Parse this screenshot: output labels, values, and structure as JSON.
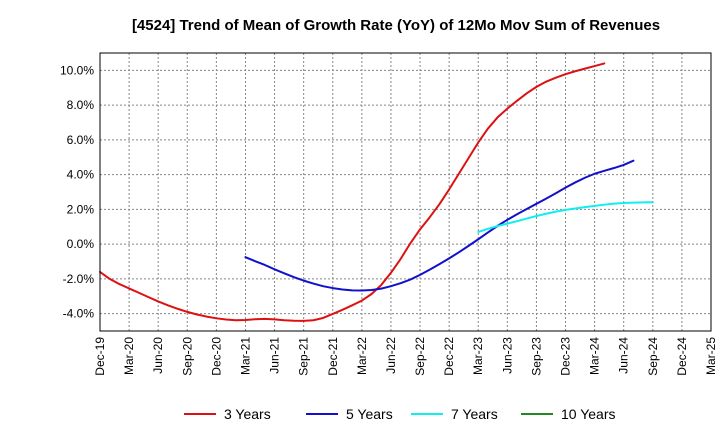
{
  "chart_data": {
    "type": "line",
    "title": "[4524]  Trend of Mean of Growth Rate (YoY) of 12Mo Mov Sum of Revenues",
    "xlabel": "",
    "ylabel": "",
    "ylim": [
      -5.0,
      11.0
    ],
    "yticks": [
      10.0,
      8.0,
      6.0,
      4.0,
      2.0,
      0.0,
      -2.0,
      -4.0
    ],
    "ytick_labels": [
      "10.0%",
      "8.0%",
      "6.0%",
      "4.0%",
      "2.0%",
      "0.0%",
      "-2.0%",
      "-4.0%"
    ],
    "x_tick_labels": [
      "Dec-19",
      "Mar-20",
      "Jun-20",
      "Sep-20",
      "Dec-20",
      "Mar-21",
      "Jun-21",
      "Sep-21",
      "Dec-21",
      "Mar-22",
      "Jun-22",
      "Sep-22",
      "Dec-22",
      "Mar-23",
      "Jun-23",
      "Sep-23",
      "Dec-23",
      "Mar-24",
      "Jun-24",
      "Sep-24",
      "Dec-24",
      "Mar-25"
    ],
    "x_start": "Dec-19",
    "x_months": 63,
    "grid": true,
    "legend_position": "bottom",
    "series": [
      {
        "name": "3 Years",
        "color": "#dd1111",
        "start_month": 0,
        "values": [
          -1.6,
          -2.0,
          -2.3,
          -2.55,
          -2.8,
          -3.05,
          -3.3,
          -3.52,
          -3.72,
          -3.9,
          -4.05,
          -4.17,
          -4.27,
          -4.34,
          -4.38,
          -4.37,
          -4.32,
          -4.3,
          -4.33,
          -4.38,
          -4.41,
          -4.42,
          -4.38,
          -4.25,
          -4.02,
          -3.78,
          -3.52,
          -3.25,
          -2.87,
          -2.35,
          -1.65,
          -0.85,
          0.05,
          0.85,
          1.55,
          2.3,
          3.15,
          4.05,
          4.95,
          5.85,
          6.65,
          7.3,
          7.8,
          8.25,
          8.68,
          9.05,
          9.35,
          9.58,
          9.78,
          9.95,
          10.1,
          10.25,
          10.4
        ]
      },
      {
        "name": "5 Years",
        "color": "#1111cc",
        "start_month": 15,
        "values": [
          -0.75,
          -0.98,
          -1.2,
          -1.45,
          -1.68,
          -1.9,
          -2.1,
          -2.27,
          -2.42,
          -2.53,
          -2.61,
          -2.66,
          -2.67,
          -2.64,
          -2.56,
          -2.42,
          -2.25,
          -2.04,
          -1.77,
          -1.47,
          -1.15,
          -0.82,
          -0.47,
          -0.1,
          0.28,
          0.67,
          1.05,
          1.4,
          1.72,
          2.02,
          2.32,
          2.62,
          2.93,
          3.25,
          3.55,
          3.82,
          4.05,
          4.22,
          4.38,
          4.56,
          4.8
        ]
      },
      {
        "name": "7 Years",
        "color": "#11eeee",
        "start_month": 39,
        "values": [
          0.7,
          0.88,
          1.04,
          1.18,
          1.32,
          1.47,
          1.62,
          1.75,
          1.87,
          1.97,
          2.05,
          2.13,
          2.2,
          2.27,
          2.33,
          2.37,
          2.39,
          2.4,
          2.41
        ]
      },
      {
        "name": "10 Years",
        "color": "#228822",
        "start_month": 0,
        "values": []
      }
    ]
  }
}
